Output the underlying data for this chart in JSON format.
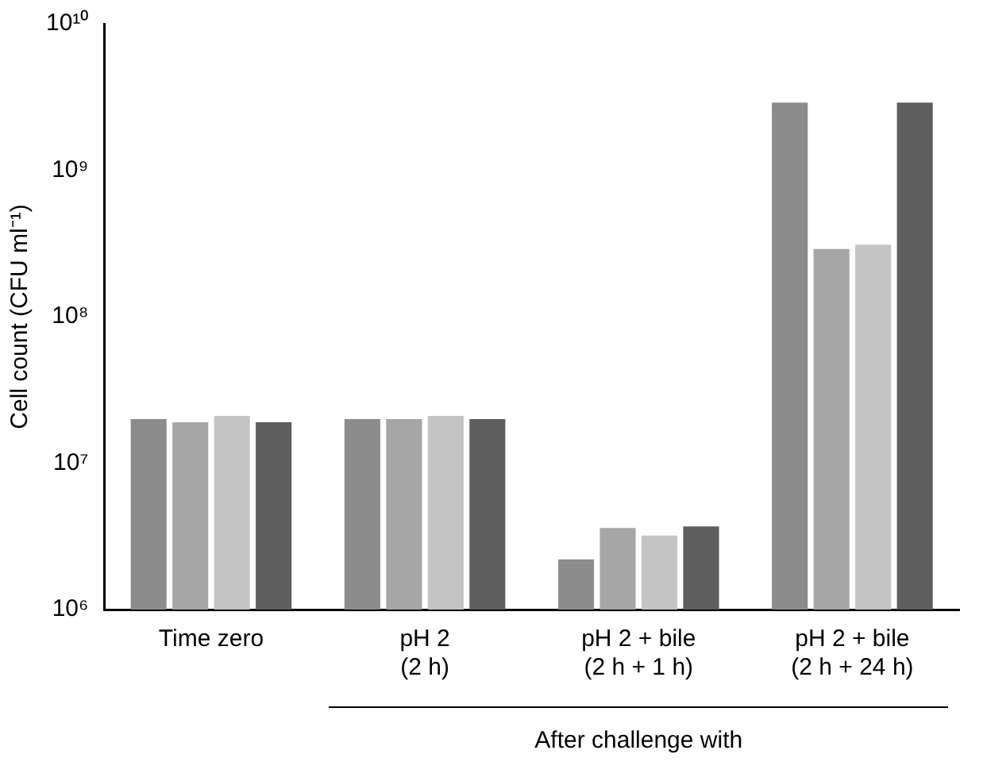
{
  "chart_data": {
    "type": "bar",
    "ylabel": "Cell count (CFU ml⁻¹)",
    "log": true,
    "categories": [
      "Time zero",
      "pH 2\n(2 h)",
      "pH 2 + bile\n(2 h + 1 h)",
      "pH 2 + bile\n(2 h + 24 h)"
    ],
    "series": [
      {
        "color": "#8c8c8c",
        "values": [
          20000000,
          20000000,
          2200000,
          2900000000
        ]
      },
      {
        "color": "#a6a6a6",
        "values": [
          19000000,
          20000000,
          3600000,
          290000000
        ]
      },
      {
        "color": "#c4c4c4",
        "values": [
          21000000,
          21000000,
          3200000,
          310000000
        ]
      },
      {
        "color": "#5e5e5e",
        "values": [
          19000000,
          20000000,
          3700000,
          2900000000
        ]
      }
    ],
    "ylim": [
      1000000,
      10000000000
    ],
    "yticks": [
      {
        "value": 1000000,
        "label": "10⁶"
      },
      {
        "value": 10000000,
        "label": "10⁷"
      },
      {
        "value": 100000000,
        "label": "10⁸"
      },
      {
        "value": 1000000000,
        "label": "10⁹"
      },
      {
        "value": 10000000000,
        "label": "10¹⁰"
      }
    ],
    "grid": false,
    "legend": false,
    "annotations": [
      "After challenge with"
    ]
  }
}
